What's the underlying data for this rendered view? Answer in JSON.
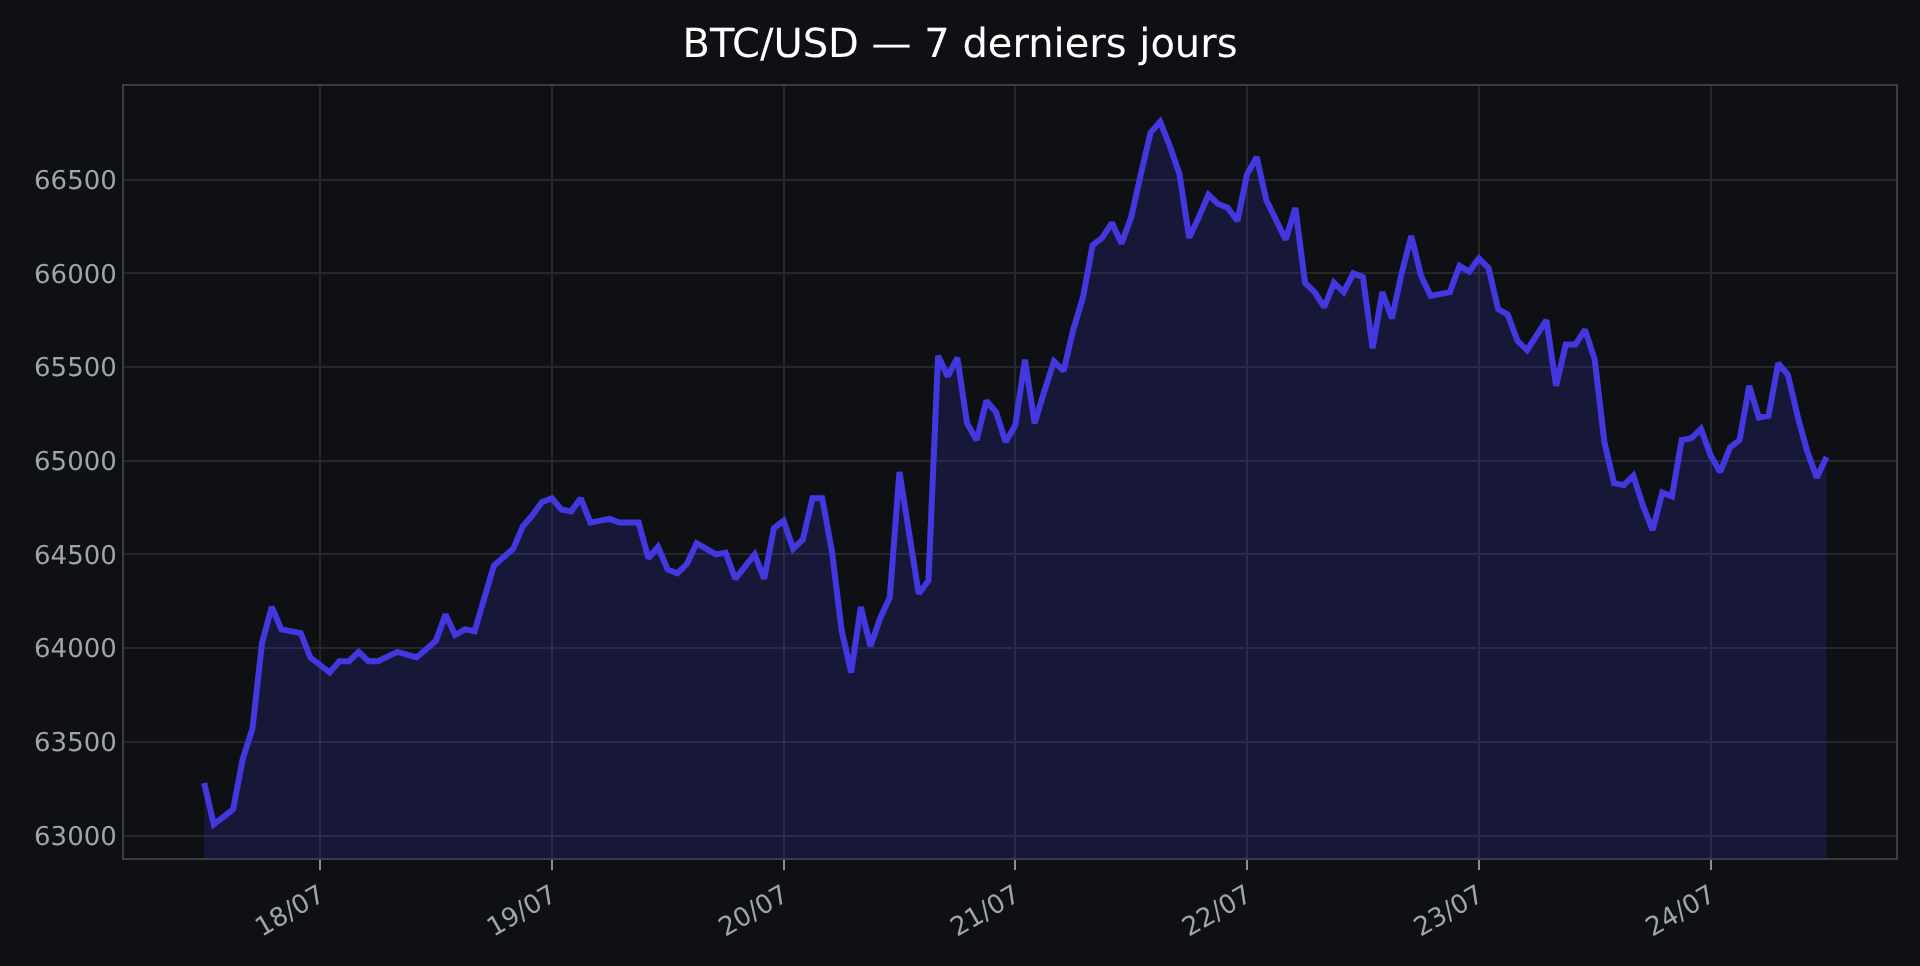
{
  "chart_data": {
    "type": "area",
    "title": "BTC/USD — 7 derniers jours",
    "x": [
      "--07-17T12:00",
      "--07-17T13:00",
      "--07-17T15:00",
      "--07-17T16:00",
      "--07-17T17:00",
      "--07-17T18:00",
      "--07-17T19:00",
      "--07-17T20:00",
      "--07-17T22:00",
      "--07-17T23:00",
      "--07-18T01:00",
      "--07-18T02:00",
      "--07-18T03:00",
      "--07-18T04:00",
      "--07-18T05:00",
      "--07-18T06:00",
      "--07-18T08:00",
      "--07-18T10:00",
      "--07-18T12:00",
      "--07-18T13:00",
      "--07-18T14:00",
      "--07-18T15:00",
      "--07-18T16:00",
      "--07-18T18:00",
      "--07-18T20:00",
      "--07-18T21:00",
      "--07-18T22:00",
      "--07-18T23:00",
      "--07-19T00:00",
      "--07-19T01:00",
      "--07-19T02:00",
      "--07-19T03:00",
      "--07-19T04:00",
      "--07-19T06:00",
      "--07-19T07:00",
      "--07-19T09:00",
      "--07-19T10:00",
      "--07-19T11:00",
      "--07-19T12:00",
      "--07-19T13:00",
      "--07-19T14:00",
      "--07-19T15:00",
      "--07-19T17:00",
      "--07-19T18:00",
      "--07-19T19:00",
      "--07-19T21:00",
      "--07-19T22:00",
      "--07-19T23:00",
      "--07-20T00:00",
      "--07-20T01:00",
      "--07-20T02:00",
      "--07-20T03:00",
      "--07-20T04:00",
      "--07-20T05:00",
      "--07-20T06:00",
      "--07-20T07:00",
      "--07-20T08:00",
      "--07-20T09:00",
      "--07-20T10:00",
      "--07-20T11:00",
      "--07-20T12:00",
      "--07-20T14:00",
      "--07-20T15:00",
      "--07-20T16:00",
      "--07-20T17:00",
      "--07-20T18:00",
      "--07-20T19:00",
      "--07-20T20:00",
      "--07-20T21:00",
      "--07-20T22:00",
      "--07-20T23:00",
      "--07-21T00:00",
      "--07-21T01:00",
      "--07-21T02:00",
      "--07-21T03:00",
      "--07-21T04:00",
      "--07-21T05:00",
      "--07-21T06:00",
      "--07-21T07:00",
      "--07-21T08:00",
      "--07-21T09:00",
      "--07-21T10:00",
      "--07-21T11:00",
      "--07-21T12:00",
      "--07-21T13:00",
      "--07-21T14:00",
      "--07-21T15:00",
      "--07-21T16:00",
      "--07-21T17:00",
      "--07-21T18:00",
      "--07-21T19:00",
      "--07-21T20:00",
      "--07-21T21:00",
      "--07-21T22:00",
      "--07-21T23:00",
      "--07-22T00:00",
      "--07-22T01:00",
      "--07-22T02:00",
      "--07-22T04:00",
      "--07-22T05:00",
      "--07-22T06:00",
      "--07-22T07:00",
      "--07-22T08:00",
      "--07-22T09:00",
      "--07-22T10:00",
      "--07-22T11:00",
      "--07-22T12:00",
      "--07-22T13:00",
      "--07-22T14:00",
      "--07-22T15:00",
      "--07-22T16:00",
      "--07-22T17:00",
      "--07-22T18:00",
      "--07-22T19:00",
      "--07-22T21:00",
      "--07-22T22:00",
      "--07-22T23:00",
      "--07-23T00:00",
      "--07-23T01:00",
      "--07-23T02:00",
      "--07-23T03:00",
      "--07-23T04:00",
      "--07-23T05:00",
      "--07-23T06:00",
      "--07-23T07:00",
      "--07-23T08:00",
      "--07-23T09:00",
      "--07-23T10:00",
      "--07-23T11:00",
      "--07-23T12:00",
      "--07-23T13:00",
      "--07-23T14:00",
      "--07-23T15:00",
      "--07-23T16:00",
      "--07-23T17:00",
      "--07-23T18:00",
      "--07-23T19:00",
      "--07-23T20:00",
      "--07-23T21:00",
      "--07-23T22:00",
      "--07-23T23:00",
      "--07-24T00:00",
      "--07-24T01:00",
      "--07-24T02:00",
      "--07-24T03:00",
      "--07-24T04:00",
      "--07-24T05:00",
      "--07-24T06:00",
      "--07-24T07:00",
      "--07-24T08:00",
      "--07-24T09:00",
      "--07-24T10:00",
      "--07-24T11:00",
      "--07-24T12:00"
    ],
    "series": [
      {
        "color": "#4338e0",
        "values": [
          63280,
          63060,
          63140,
          63410,
          63570,
          64030,
          64220,
          64100,
          64080,
          63950,
          63870,
          63930,
          63930,
          63980,
          63930,
          63930,
          63980,
          63950,
          64040,
          64180,
          64070,
          64100,
          64090,
          64440,
          64530,
          64650,
          64710,
          64780,
          64800,
          64740,
          64730,
          64800,
          64670,
          64690,
          64670,
          64670,
          64480,
          64540,
          64420,
          64400,
          64450,
          64560,
          64500,
          64510,
          64370,
          64500,
          64370,
          64640,
          64680,
          64530,
          64580,
          64800,
          64800,
          64520,
          64100,
          63870,
          64220,
          64010,
          64160,
          64270,
          64940,
          64290,
          64360,
          65560,
          65450,
          65550,
          65200,
          65110,
          65320,
          65260,
          65100,
          65190,
          65540,
          65200,
          65370,
          65530,
          65480,
          65700,
          65870,
          66150,
          66190,
          66270,
          66160,
          66300,
          66530,
          66750,
          66810,
          66680,
          66530,
          66190,
          66300,
          66420,
          66370,
          66350,
          66280,
          66530,
          66620,
          66390,
          66180,
          66350,
          65950,
          65900,
          65820,
          65950,
          65900,
          66000,
          65980,
          65600,
          65900,
          65760,
          66000,
          66200,
          65990,
          65880,
          65900,
          66040,
          66010,
          66080,
          66030,
          65810,
          65780,
          65640,
          65590,
          65670,
          65750,
          65400,
          65620,
          65620,
          65700,
          65540,
          65100,
          64880,
          64870,
          64920,
          64760,
          64630,
          64830,
          64810,
          65110,
          65120,
          65170,
          65030,
          64940,
          65070,
          65110,
          65400,
          65230,
          65240,
          65520,
          65460,
          65240,
          65050,
          64910,
          65020
        ]
      }
    ],
    "xlim": [
      "--07-17T03:42",
      "--07-24T19:12"
    ],
    "xticks": [
      {
        "value": "--07-18",
        "label": "18/07"
      },
      {
        "value": "--07-19",
        "label": "19/07"
      },
      {
        "value": "--07-20",
        "label": "20/07"
      },
      {
        "value": "--07-21",
        "label": "21/07"
      },
      {
        "value": "--07-22",
        "label": "22/07"
      },
      {
        "value": "--07-23",
        "label": "23/07"
      },
      {
        "value": "--07-24",
        "label": "24/07"
      }
    ],
    "ylim": [
      62880,
      67000
    ],
    "yticks": [
      63000,
      63500,
      64000,
      64500,
      65000,
      65500,
      66000,
      66500
    ],
    "grid": true
  }
}
